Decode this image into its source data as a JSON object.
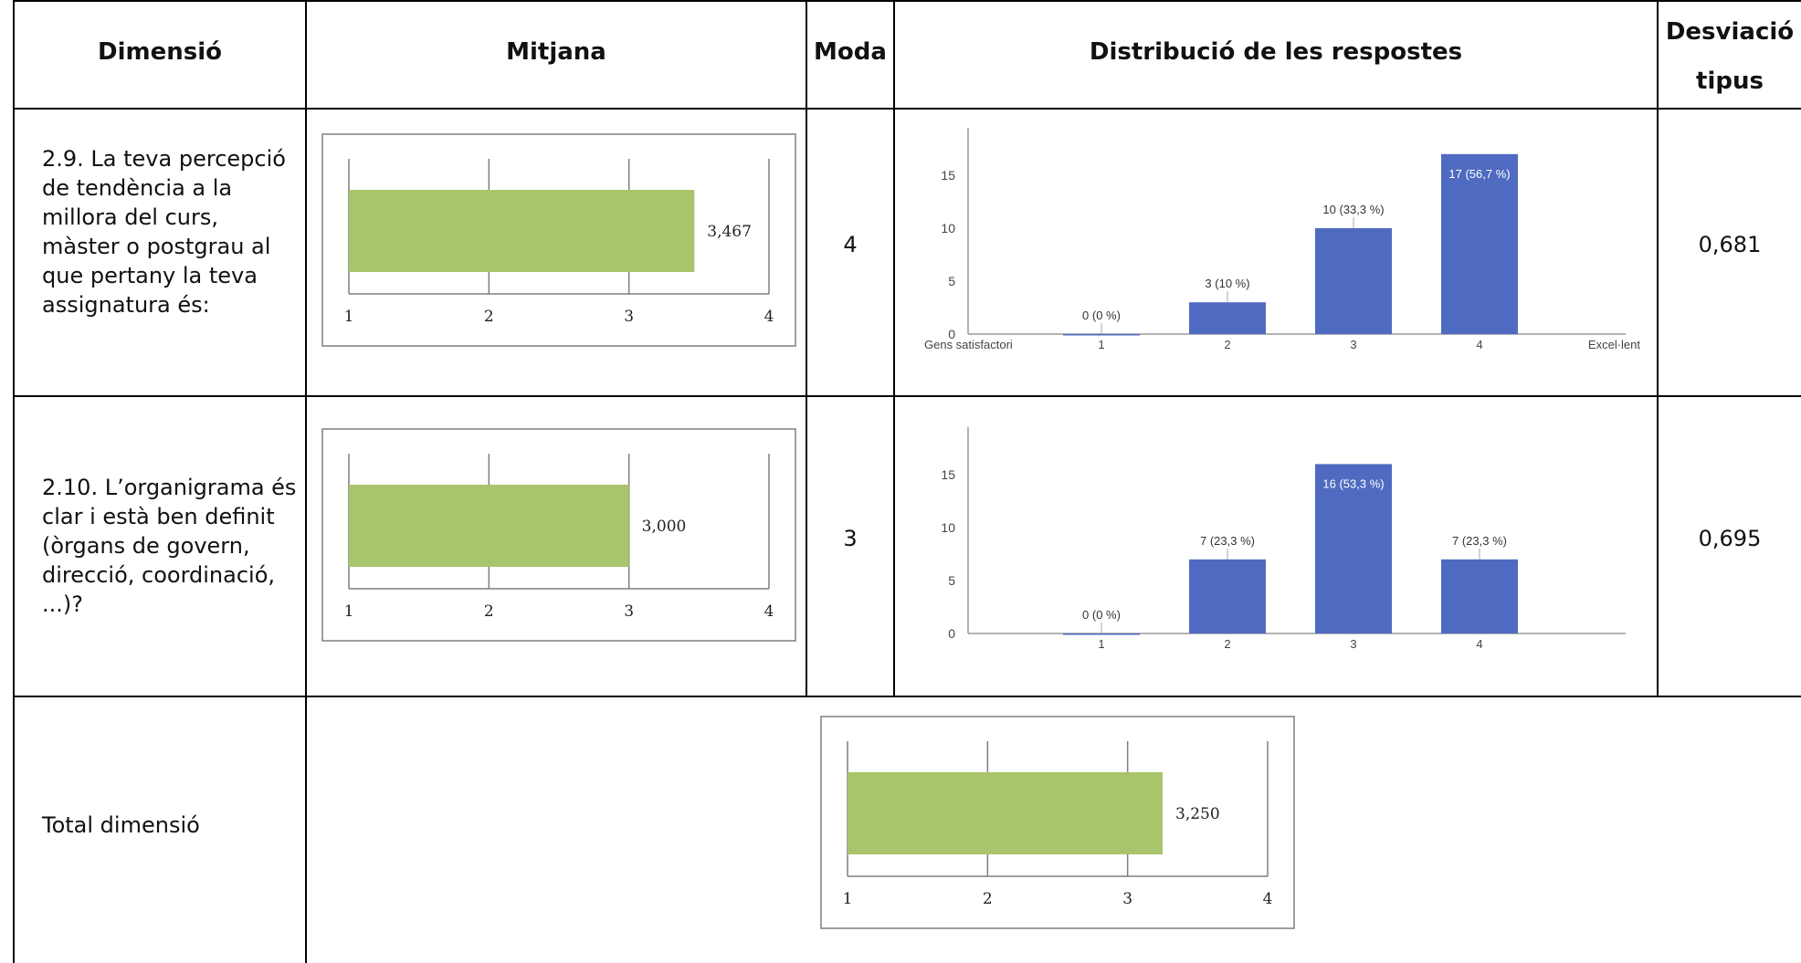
{
  "headers": {
    "dimension": "Dimensió",
    "mean": "Mitjana",
    "mode": "Moda",
    "distribution": "Distribució de les respostes",
    "sd_line1": "Desviació",
    "sd_line2": "tipus"
  },
  "rows": [
    {
      "label": "2.9.   La teva percepció de tendència a la millora del curs, màster o postgrau al que pertany la teva assignatura és:",
      "mode": "4",
      "sd": "0,681"
    },
    {
      "label": "2.10. L’organigrama és clar i està ben definit (òrgans de govern, direcció, coordinació, ...)?",
      "mode": "3",
      "sd": "0,695"
    }
  ],
  "total": {
    "label": "Total dimensió"
  },
  "colors": {
    "mean_bar": "#a9c56c",
    "dist_bar": "#4f6bc1",
    "axis": "#888888"
  },
  "chart_data": [
    {
      "id": "mean-2-9",
      "type": "bar",
      "orientation": "horizontal",
      "values": [
        3.467
      ],
      "value_label": "3,467",
      "xlim": [
        1,
        4
      ],
      "xticks": [
        "1",
        "2",
        "3",
        "4"
      ]
    },
    {
      "id": "dist-2-9",
      "type": "bar",
      "categories": [
        "1",
        "2",
        "3",
        "4"
      ],
      "values": [
        0,
        3,
        10,
        17
      ],
      "data_labels": [
        "0 (0 %)",
        "3 (10 %)",
        "10 (33,3 %)",
        "17 (56,7 %)"
      ],
      "ylim": [
        0,
        17
      ],
      "yticks": [
        "0",
        "5",
        "10",
        "15"
      ],
      "x_end_labels": [
        "Gens satisfactori",
        "Excel·lent"
      ]
    },
    {
      "id": "mean-2-10",
      "type": "bar",
      "orientation": "horizontal",
      "values": [
        3.0
      ],
      "value_label": "3,000",
      "xlim": [
        1,
        4
      ],
      "xticks": [
        "1",
        "2",
        "3",
        "4"
      ]
    },
    {
      "id": "dist-2-10",
      "type": "bar",
      "categories": [
        "1",
        "2",
        "3",
        "4"
      ],
      "values": [
        0,
        7,
        16,
        7
      ],
      "data_labels": [
        "0 (0 %)",
        "7 (23,3 %)",
        "16 (53,3 %)",
        "7 (23,3 %)"
      ],
      "ylim": [
        0,
        16
      ],
      "yticks": [
        "0",
        "5",
        "10",
        "15"
      ],
      "x_end_labels": [
        "",
        ""
      ]
    },
    {
      "id": "mean-total",
      "type": "bar",
      "orientation": "horizontal",
      "values": [
        3.25
      ],
      "value_label": "3,250",
      "xlim": [
        1,
        4
      ],
      "xticks": [
        "1",
        "2",
        "3",
        "4"
      ]
    }
  ]
}
